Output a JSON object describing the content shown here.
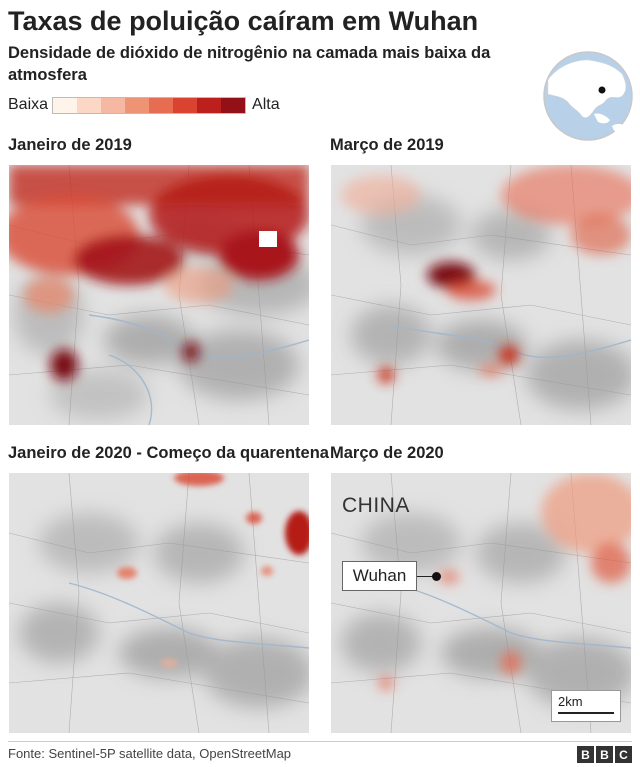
{
  "title": "Taxas de poluição caíram em Wuhan",
  "subtitle": "Densidade de dióxido de nitrogênio na camada mais baixa da atmosfera",
  "legend": {
    "low_label": "Baixa",
    "high_label": "Alta",
    "colors": [
      "#fff4ea",
      "#fdd7c6",
      "#f5b8a2",
      "#ee9475",
      "#e66c52",
      "#d9432f",
      "#bd1f1c",
      "#931017",
      "#5e0710"
    ]
  },
  "panels": [
    {
      "label": "Janeiro de 2019"
    },
    {
      "label": "Março de 2019"
    },
    {
      "label": "Janeiro de 2020 - Começo da quarentena"
    },
    {
      "label": "Março de 2020"
    }
  ],
  "map_labels": {
    "country": "CHINA",
    "city": "Wuhan",
    "scale": "2km"
  },
  "footer": {
    "source": "Fonte: Sentinel-5P satellite data, OpenStreetMap",
    "logo_letters": [
      "B",
      "B",
      "C"
    ]
  },
  "colors": {
    "terrain_light": "#e6e6e6",
    "terrain_dark": "#9a9a9a",
    "water": "#b8c8d8",
    "pollution_mid": "#e0472f",
    "pollution_high": "#6a0812"
  }
}
